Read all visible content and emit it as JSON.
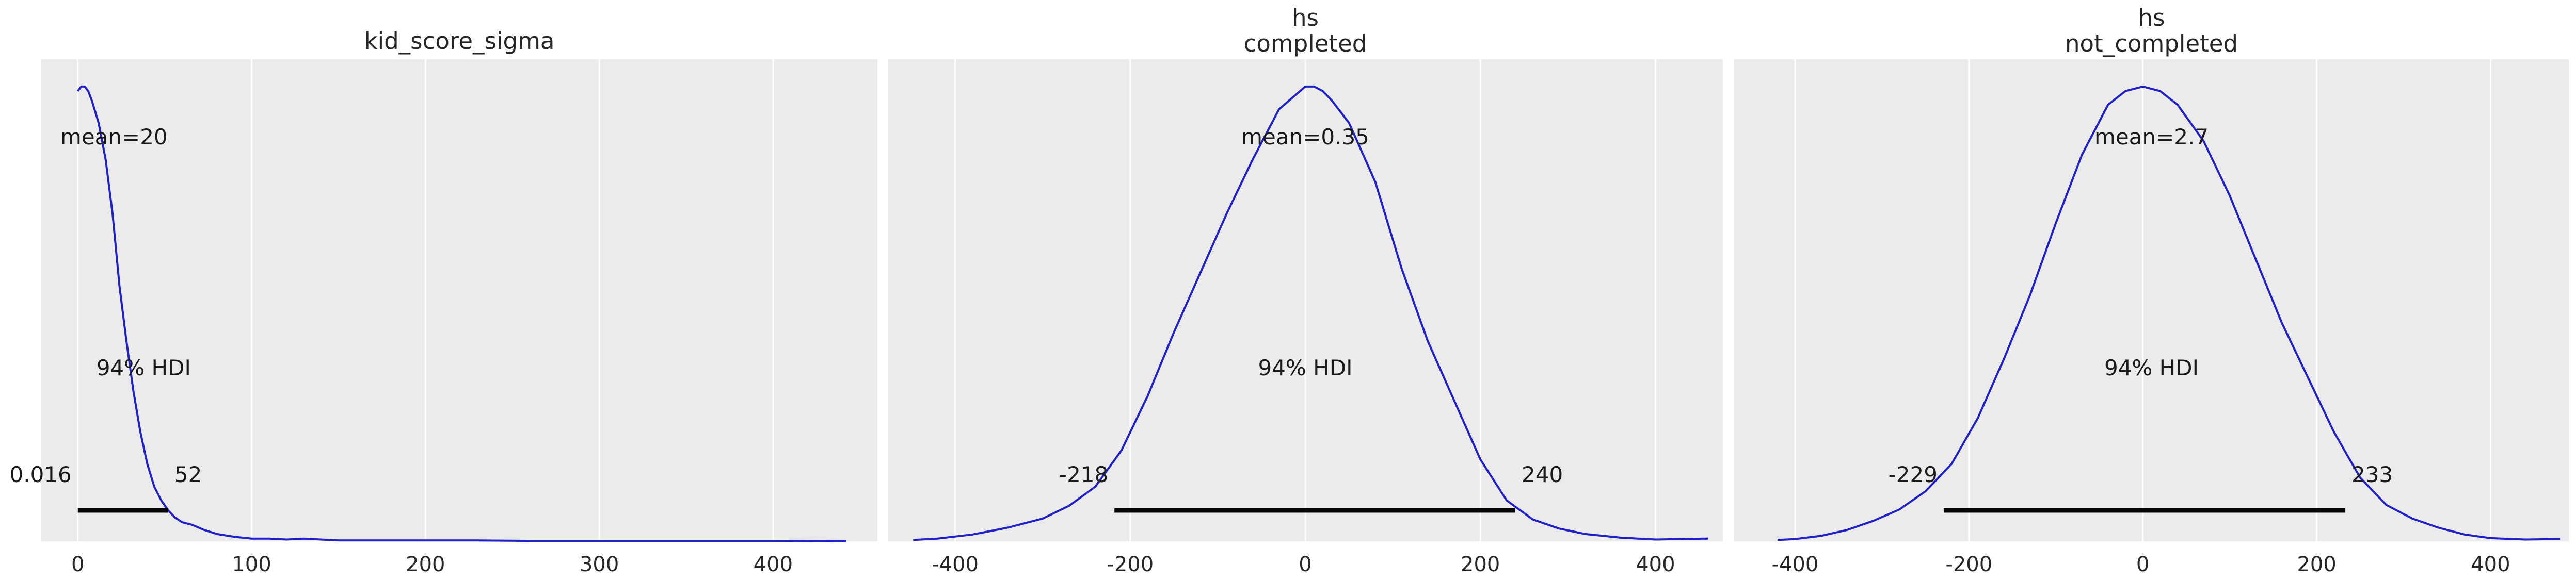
{
  "chart_data": [
    {
      "type": "line",
      "title": "kid_score_sigma",
      "title_lines": [
        "kid_score_sigma"
      ],
      "xlim": [
        -21,
        460
      ],
      "ylim": [
        0,
        1.06
      ],
      "xticks": [
        0,
        100,
        200,
        300,
        400
      ],
      "grid": true,
      "mean_label": "mean=20",
      "hdi_label": "94% HDI",
      "hdi": [
        0.016,
        52
      ],
      "hdi_low_label": "0.016",
      "hdi_high_label": "52",
      "density": {
        "x": [
          0,
          2,
          4,
          6,
          8,
          12,
          16,
          20,
          24,
          28,
          32,
          36,
          40,
          44,
          48,
          52,
          56,
          60,
          66,
          72,
          80,
          90,
          100,
          110,
          120,
          130,
          140,
          150,
          160,
          175,
          190,
          210,
          230,
          260,
          300,
          350,
          400,
          442
        ],
        "y": [
          0.99,
          1.0,
          1.0,
          0.99,
          0.97,
          0.92,
          0.84,
          0.72,
          0.56,
          0.44,
          0.33,
          0.24,
          0.17,
          0.12,
          0.09,
          0.068,
          0.052,
          0.042,
          0.036,
          0.026,
          0.016,
          0.01,
          0.006,
          0.006,
          0.004,
          0.006,
          0.004,
          0.002,
          0.002,
          0.002,
          0.002,
          0.002,
          0.002,
          0.001,
          0.001,
          0.001,
          0.001,
          0.0
        ]
      }
    },
    {
      "type": "line",
      "title": "hs completed",
      "title_lines": [
        "hs",
        "completed"
      ],
      "xlim": [
        -477,
        477
      ],
      "ylim": [
        0,
        1.06
      ],
      "xticks": [
        -400,
        -200,
        0,
        200,
        400
      ],
      "grid": true,
      "mean_label": "mean=0.35",
      "hdi_label": "94% HDI",
      "hdi": [
        -218,
        240
      ],
      "hdi_low_label": "-218",
      "hdi_high_label": "240",
      "density": {
        "x": [
          -448,
          -420,
          -380,
          -340,
          -300,
          -270,
          -240,
          -210,
          -180,
          -150,
          -120,
          -90,
          -60,
          -30,
          0,
          10,
          20,
          30,
          50,
          80,
          110,
          140,
          170,
          200,
          230,
          260,
          290,
          320,
          360,
          400,
          460
        ],
        "y": [
          0.003,
          0.006,
          0.015,
          0.03,
          0.05,
          0.078,
          0.12,
          0.2,
          0.32,
          0.46,
          0.59,
          0.72,
          0.84,
          0.95,
          1.0,
          1.0,
          0.99,
          0.97,
          0.92,
          0.79,
          0.6,
          0.44,
          0.31,
          0.18,
          0.09,
          0.048,
          0.028,
          0.016,
          0.008,
          0.004,
          0.006
        ]
      }
    },
    {
      "type": "line",
      "title": "hs not_completed",
      "title_lines": [
        "hs",
        "not_completed"
      ],
      "xlim": [
        -470,
        490
      ],
      "ylim": [
        0,
        1.06
      ],
      "xticks": [
        -400,
        -200,
        0,
        200,
        400
      ],
      "grid": true,
      "mean_label": "mean=2.7",
      "hdi_label": "94% HDI",
      "hdi": [
        -229,
        233
      ],
      "hdi_low_label": "-229",
      "hdi_high_label": "233",
      "density": {
        "x": [
          -420,
          -400,
          -370,
          -340,
          -310,
          -280,
          -250,
          -220,
          -190,
          -160,
          -130,
          -100,
          -70,
          -40,
          -20,
          0,
          20,
          40,
          70,
          100,
          130,
          160,
          190,
          220,
          250,
          280,
          310,
          340,
          370,
          400,
          440,
          480
        ],
        "y": [
          0.003,
          0.005,
          0.012,
          0.025,
          0.045,
          0.07,
          0.11,
          0.17,
          0.27,
          0.4,
          0.54,
          0.7,
          0.85,
          0.96,
          0.99,
          1.0,
          0.99,
          0.96,
          0.88,
          0.76,
          0.62,
          0.48,
          0.36,
          0.24,
          0.14,
          0.08,
          0.05,
          0.03,
          0.015,
          0.007,
          0.004,
          0.005
        ]
      }
    }
  ]
}
